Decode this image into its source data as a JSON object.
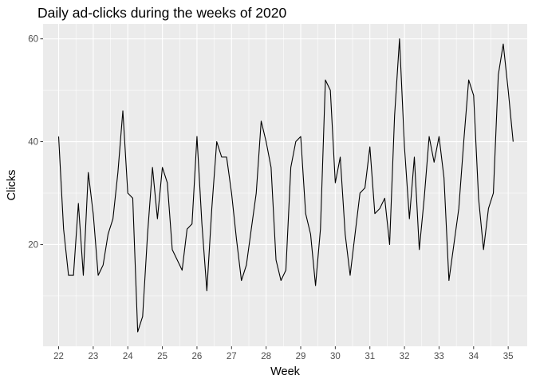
{
  "chart_data": {
    "type": "line",
    "title": "Daily ad-clicks during the weeks of 2020",
    "xlabel": "Week",
    "ylabel": "Clicks",
    "x_ticks": [
      22,
      23,
      24,
      25,
      26,
      27,
      28,
      29,
      30,
      31,
      32,
      33,
      34,
      35
    ],
    "y_ticks": [
      20,
      40,
      60
    ],
    "xlim": [
      21.55,
      35.55
    ],
    "ylim": [
      0.2,
      62.9
    ],
    "grid": true,
    "legend": "none",
    "colors": {
      "panel": "#EBEBEB",
      "grid": "#FFFFFF",
      "line": "#000000",
      "tick_text": "#4D4D4D"
    },
    "series": [
      {
        "x": [
          22.0,
          22.143,
          22.286,
          22.429,
          22.571,
          22.714,
          22.857,
          23.0,
          23.143,
          23.286,
          23.429,
          23.571,
          23.714,
          23.857,
          24.0,
          24.143,
          24.286,
          24.429,
          24.571,
          24.714,
          24.857,
          25.0,
          25.143,
          25.286,
          25.429,
          25.571,
          25.714,
          25.857,
          26.0,
          26.143,
          26.286,
          26.429,
          26.571,
          26.714,
          26.857,
          27.0,
          27.143,
          27.286,
          27.429,
          27.571,
          27.714,
          27.857,
          28.0,
          28.143,
          28.286,
          28.429,
          28.571,
          28.714,
          28.857,
          29.0,
          29.143,
          29.286,
          29.429,
          29.571,
          29.714,
          29.857,
          30.0,
          30.143,
          30.286,
          30.429,
          30.571,
          30.714,
          30.857,
          31.0,
          31.143,
          31.286,
          31.429,
          31.571,
          31.714,
          31.857,
          32.0,
          32.143,
          32.286,
          32.429,
          32.571,
          32.714,
          32.857,
          33.0,
          33.143,
          33.286,
          33.429,
          33.571,
          33.714,
          33.857,
          34.0,
          34.143,
          34.286,
          34.429,
          34.571,
          34.714,
          34.857,
          35.0,
          35.143
        ],
        "y": [
          41,
          23,
          14,
          14,
          28,
          14,
          34,
          26,
          14,
          16,
          22,
          25,
          34,
          46,
          30,
          29,
          3,
          6,
          22,
          35,
          25,
          35,
          32,
          19,
          17,
          15,
          23,
          24,
          41,
          24,
          11,
          27,
          40,
          37,
          37,
          30,
          21,
          13,
          16,
          23,
          30,
          44,
          40,
          35,
          17,
          13,
          15,
          35,
          40,
          41,
          26,
          22,
          12,
          23,
          52,
          50,
          32,
          37,
          22,
          14,
          22,
          30,
          31,
          39,
          26,
          27,
          29,
          20,
          45,
          60,
          39,
          25,
          37,
          19,
          29,
          41,
          36,
          41,
          33,
          13,
          20,
          27,
          40,
          52,
          49,
          29,
          19,
          27,
          30,
          53,
          59,
          50,
          40
        ]
      }
    ]
  }
}
